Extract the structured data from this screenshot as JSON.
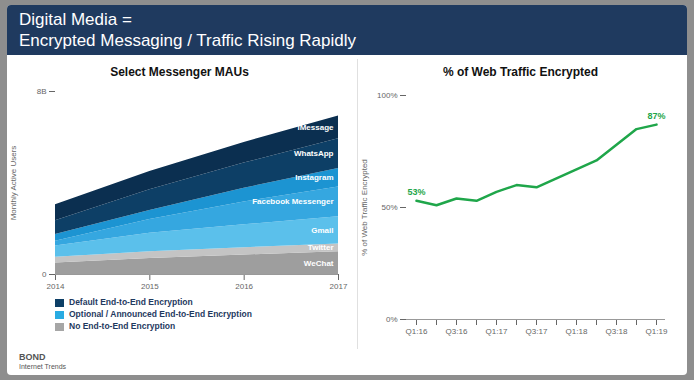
{
  "page": {
    "title_lines": [
      "Digital Media =",
      "Encrypted Messaging / Traffic Rising Rapidly"
    ],
    "footer": [
      "BOND",
      "Internet Trends"
    ]
  },
  "chart_data": [
    {
      "type": "area",
      "stacked": true,
      "title": "Select Messenger MAUs",
      "ylabel": "Monthly Active Users",
      "x": [
        2014,
        2015,
        2016,
        2017
      ],
      "xlim": [
        2014,
        2017
      ],
      "xticks": [
        2014,
        2015,
        2016,
        2017
      ],
      "ylim": [
        0,
        8
      ],
      "yticks": [
        0,
        {
          "value": 8,
          "label": "8B"
        }
      ],
      "grid": false,
      "legend": "bottom",
      "legend_entries": [
        {
          "label": "Default End-to-End Encryption",
          "color": "#0d3f66"
        },
        {
          "label": "Optional / Announced End-to-End Encryption",
          "color": "#29abe2"
        },
        {
          "label": "No End-to-End Encryption",
          "color": "#a6a6a6"
        }
      ],
      "series": [
        {
          "name": "WeChat",
          "color": "#9e9e9e",
          "values": [
            0.5,
            0.7,
            0.85,
            1.0
          ]
        },
        {
          "name": "Twitter",
          "color": "#c4c4c4",
          "values": [
            0.25,
            0.3,
            0.32,
            0.33
          ]
        },
        {
          "name": "Gmail",
          "color": "#5bc0eb",
          "values": [
            0.5,
            0.8,
            1.0,
            1.2
          ]
        },
        {
          "name": "Facebook Messenger",
          "color": "#35a7e0",
          "values": [
            0.2,
            0.6,
            1.0,
            1.3
          ]
        },
        {
          "name": "Instagram",
          "color": "#1c94d2",
          "values": [
            0.3,
            0.4,
            0.6,
            0.8
          ]
        },
        {
          "name": "WhatsApp",
          "color": "#0d3f66",
          "values": [
            0.6,
            0.9,
            1.1,
            1.3
          ]
        },
        {
          "name": "iMessage",
          "color": "#0b2f50",
          "values": [
            0.7,
            0.8,
            0.9,
            1.0
          ]
        }
      ]
    },
    {
      "type": "line",
      "title": "% of Web Traffic Encrypted",
      "ylabel": "% of Web Traffic Encrypted",
      "categories": [
        "Q1:16",
        null,
        "Q3:16",
        null,
        "Q1:17",
        null,
        "Q3:17",
        null,
        "Q1:18",
        null,
        "Q3:18",
        null,
        "Q1:19"
      ],
      "values": [
        53,
        51,
        54,
        53,
        57,
        60,
        59,
        63,
        67,
        71,
        78,
        85,
        87
      ],
      "value_labels": [
        "53%",
        null,
        null,
        null,
        null,
        null,
        null,
        null,
        null,
        null,
        null,
        null,
        "87%"
      ],
      "color": "#1fa64a",
      "ylim": [
        0,
        100
      ],
      "yticks": [
        {
          "value": 0,
          "label": "0%"
        },
        {
          "value": 50,
          "label": "50%"
        },
        {
          "value": 100,
          "label": "100%"
        }
      ],
      "grid": false
    }
  ]
}
